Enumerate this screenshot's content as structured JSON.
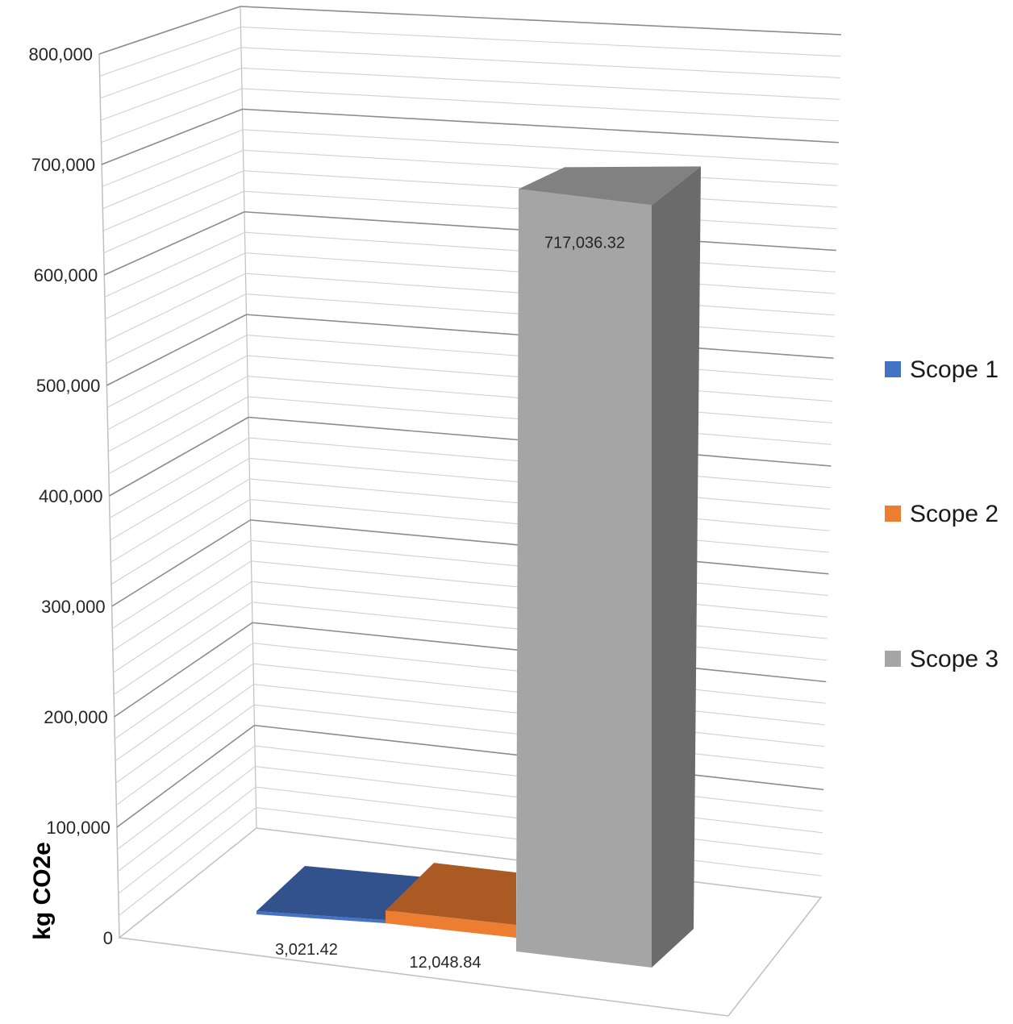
{
  "chart_data": {
    "type": "bar",
    "title": "",
    "xlabel": "",
    "ylabel": "kg CO2e",
    "ylim": [
      0,
      800000
    ],
    "y_ticks": [
      0,
      100000,
      200000,
      300000,
      400000,
      500000,
      600000,
      700000,
      800000
    ],
    "y_tick_labels": [
      "0",
      "100,000",
      "200,000",
      "300,000",
      "400,000",
      "500,000",
      "600,000",
      "700,000",
      "800,000"
    ],
    "grid": true,
    "legend_position": "right",
    "series": [
      {
        "name": "Scope 1",
        "value": 3021.42,
        "label": "3,021.42",
        "color": "#4472C4"
      },
      {
        "name": "Scope 2",
        "value": 12048.84,
        "label": "12,048.84",
        "color": "#ED7D31"
      },
      {
        "name": "Scope 3",
        "value": 717036.32,
        "label": "717,036.32",
        "color": "#A5A5A5"
      }
    ]
  }
}
